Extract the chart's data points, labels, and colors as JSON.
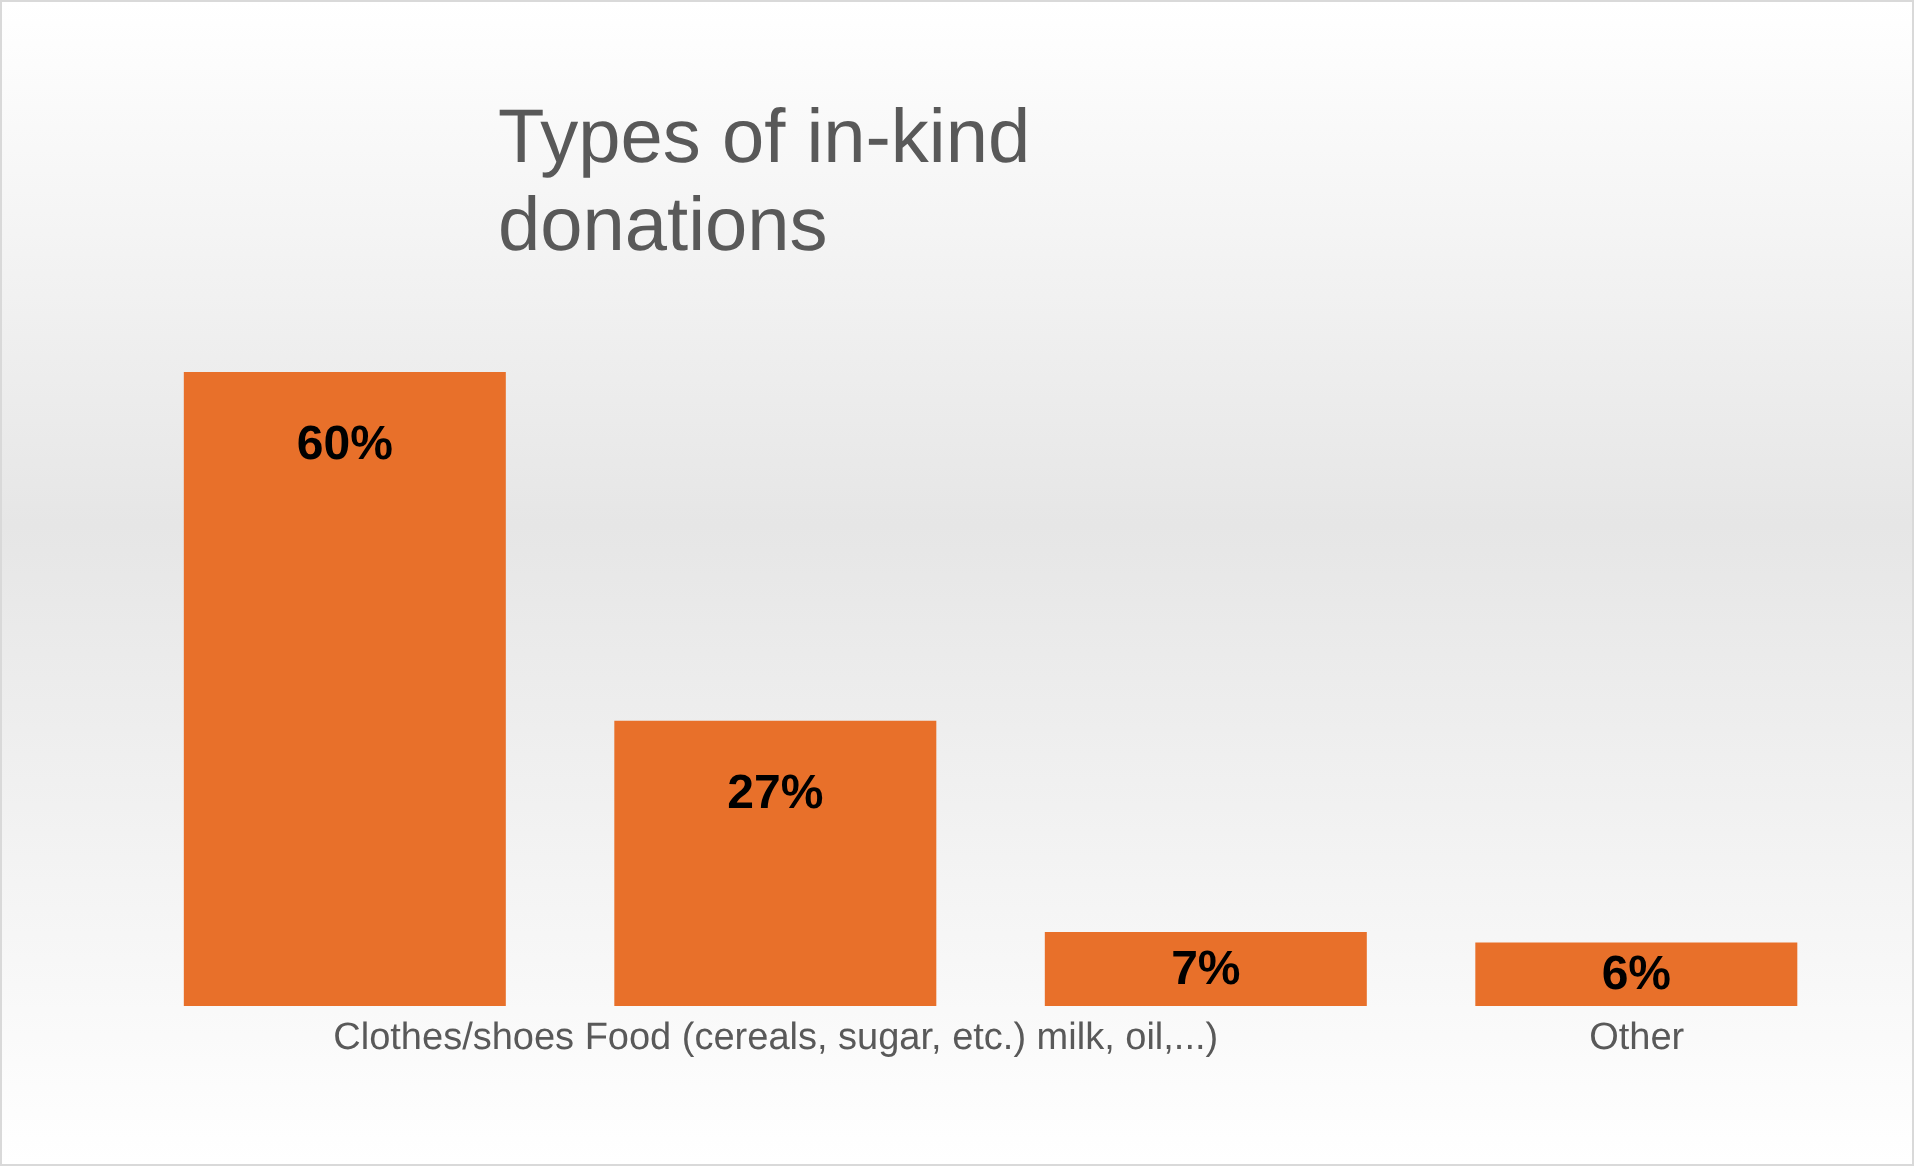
{
  "chart_data": {
    "type": "bar",
    "title": "Types of in-kind donations",
    "categories": [
      null,
      "Clothes/shoes Food (cereals, sugar, etc.) milk, oil,...)",
      null,
      "Other"
    ],
    "values": [
      60,
      27,
      7,
      6
    ],
    "color": "#e8702a",
    "value_labels": [
      "60%",
      "27%",
      "7%",
      "6%"
    ]
  }
}
